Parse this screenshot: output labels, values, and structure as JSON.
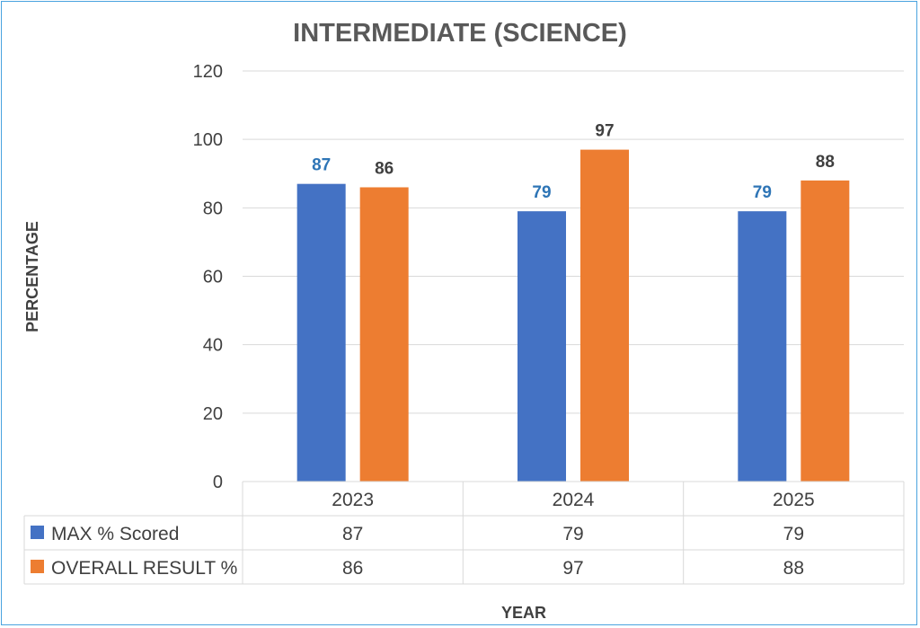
{
  "chart_data": {
    "type": "bar",
    "title": "INTERMEDIATE (SCIENCE)",
    "xlabel": "YEAR",
    "ylabel": "PERCENTAGE",
    "ylim": [
      0,
      120
    ],
    "yticks": [
      0,
      20,
      40,
      60,
      80,
      100,
      120
    ],
    "categories": [
      "2023",
      "2024",
      "2025"
    ],
    "series": [
      {
        "name": "MAX % Scored",
        "values": [
          87,
          79,
          79
        ],
        "color": "#4472c4",
        "label_color": "#2e75b6"
      },
      {
        "name": "OVERALL RESULT %",
        "values": [
          86,
          97,
          88
        ],
        "color": "#ed7d31",
        "label_color": "#404040"
      }
    ],
    "grid": true,
    "legend": "data-table"
  }
}
